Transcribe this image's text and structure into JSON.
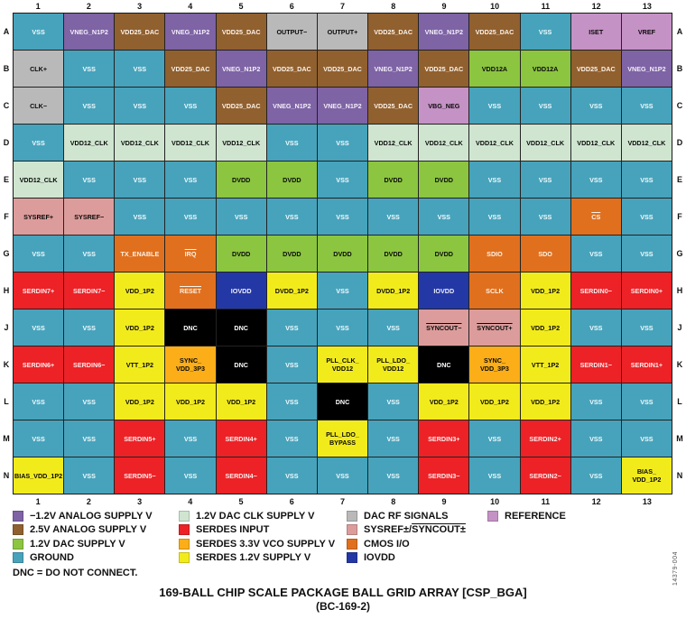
{
  "colors": {
    "gnd": {
      "bg": "#47A3BC",
      "fg": "#F2FBFD"
    },
    "neg": {
      "bg": "#7E63A5",
      "fg": "#F4EFFA"
    },
    "a25": {
      "bg": "#91602F",
      "fg": "#FBF3EA"
    },
    "dac12": {
      "bg": "#8CC540",
      "fg": "#0A0A0A"
    },
    "clk12": {
      "bg": "#CFE5D0",
      "fg": "#0A0A0A"
    },
    "rf": {
      "bg": "#B9B9B9",
      "fg": "#0A0A0A"
    },
    "ref": {
      "bg": "#C592C5",
      "fg": "#0A0A0A"
    },
    "sys": {
      "bg": "#DD9C9C",
      "fg": "#0A0A0A"
    },
    "cmos": {
      "bg": "#E0701E",
      "fg": "#FDF2E8"
    },
    "iovdd": {
      "bg": "#2438A5",
      "fg": "#EDEFFB"
    },
    "serdes": {
      "bg": "#EC2227",
      "fg": "#FDECEC"
    },
    "vco": {
      "bg": "#FBAE17",
      "fg": "#0A0A0A"
    },
    "s12": {
      "bg": "#F2EB1C",
      "fg": "#0A0A0A"
    },
    "dnc": {
      "bg": "#000000",
      "fg": "#FFFFFF"
    }
  },
  "grid": {
    "columns": [
      "1",
      "2",
      "3",
      "4",
      "5",
      "6",
      "7",
      "8",
      "9",
      "10",
      "11",
      "12",
      "13"
    ],
    "rows": [
      {
        "letter": "A",
        "cells": [
          {
            "l": "VSS",
            "t": "gnd"
          },
          {
            "l": "VNEG_N1P2",
            "t": "neg"
          },
          {
            "l": "VDD25_DAC",
            "t": "a25"
          },
          {
            "l": "VNEG_N1P2",
            "t": "neg"
          },
          {
            "l": "VDD25_DAC",
            "t": "a25"
          },
          {
            "l": "OUTPUT−",
            "t": "rf"
          },
          {
            "l": "OUTPUT+",
            "t": "rf"
          },
          {
            "l": "VDD25_DAC",
            "t": "a25"
          },
          {
            "l": "VNEG_N1P2",
            "t": "neg"
          },
          {
            "l": "VDD25_DAC",
            "t": "a25"
          },
          {
            "l": "VSS",
            "t": "gnd"
          },
          {
            "l": "ISET",
            "t": "ref"
          },
          {
            "l": "VREF",
            "t": "ref"
          }
        ]
      },
      {
        "letter": "B",
        "cells": [
          {
            "l": "CLK+",
            "t": "rf"
          },
          {
            "l": "VSS",
            "t": "gnd"
          },
          {
            "l": "VSS",
            "t": "gnd"
          },
          {
            "l": "VDD25_DAC",
            "t": "a25"
          },
          {
            "l": "VNEG_N1P2",
            "t": "neg"
          },
          {
            "l": "VDD25_DAC",
            "t": "a25"
          },
          {
            "l": "VDD25_DAC",
            "t": "a25"
          },
          {
            "l": "VNEG_N1P2",
            "t": "neg"
          },
          {
            "l": "VDD25_DAC",
            "t": "a25"
          },
          {
            "l": "VDD12A",
            "t": "dac12"
          },
          {
            "l": "VDD12A",
            "t": "dac12"
          },
          {
            "l": "VDD25_DAC",
            "t": "a25"
          },
          {
            "l": "VNEG_N1P2",
            "t": "neg"
          }
        ]
      },
      {
        "letter": "C",
        "cells": [
          {
            "l": "CLK−",
            "t": "rf"
          },
          {
            "l": "VSS",
            "t": "gnd"
          },
          {
            "l": "VSS",
            "t": "gnd"
          },
          {
            "l": "VSS",
            "t": "gnd"
          },
          {
            "l": "VDD25_DAC",
            "t": "a25"
          },
          {
            "l": "VNEG_N1P2",
            "t": "neg"
          },
          {
            "l": "VNEG_N1P2",
            "t": "neg"
          },
          {
            "l": "VDD25_DAC",
            "t": "a25"
          },
          {
            "l": "VBG_NEG",
            "t": "ref"
          },
          {
            "l": "VSS",
            "t": "gnd"
          },
          {
            "l": "VSS",
            "t": "gnd"
          },
          {
            "l": "VSS",
            "t": "gnd"
          },
          {
            "l": "VSS",
            "t": "gnd"
          }
        ]
      },
      {
        "letter": "D",
        "cells": [
          {
            "l": "VSS",
            "t": "gnd"
          },
          {
            "l": "VDD12_CLK",
            "t": "clk12"
          },
          {
            "l": "VDD12_CLK",
            "t": "clk12"
          },
          {
            "l": "VDD12_CLK",
            "t": "clk12"
          },
          {
            "l": "VDD12_CLK",
            "t": "clk12"
          },
          {
            "l": "VSS",
            "t": "gnd"
          },
          {
            "l": "VSS",
            "t": "gnd"
          },
          {
            "l": "VDD12_CLK",
            "t": "clk12"
          },
          {
            "l": "VDD12_CLK",
            "t": "clk12"
          },
          {
            "l": "VDD12_CLK",
            "t": "clk12"
          },
          {
            "l": "VDD12_CLK",
            "t": "clk12"
          },
          {
            "l": "VDD12_CLK",
            "t": "clk12"
          },
          {
            "l": "VDD12_CLK",
            "t": "clk12"
          }
        ]
      },
      {
        "letter": "E",
        "cells": [
          {
            "l": "VDD12_CLK",
            "t": "clk12"
          },
          {
            "l": "VSS",
            "t": "gnd"
          },
          {
            "l": "VSS",
            "t": "gnd"
          },
          {
            "l": "VSS",
            "t": "gnd"
          },
          {
            "l": "DVDD",
            "t": "dac12"
          },
          {
            "l": "DVDD",
            "t": "dac12"
          },
          {
            "l": "VSS",
            "t": "gnd"
          },
          {
            "l": "DVDD",
            "t": "dac12"
          },
          {
            "l": "DVDD",
            "t": "dac12"
          },
          {
            "l": "VSS",
            "t": "gnd"
          },
          {
            "l": "VSS",
            "t": "gnd"
          },
          {
            "l": "VSS",
            "t": "gnd"
          },
          {
            "l": "VSS",
            "t": "gnd"
          }
        ]
      },
      {
        "letter": "F",
        "cells": [
          {
            "l": "SYSREF+",
            "t": "sys"
          },
          {
            "l": "SYSREF−",
            "t": "sys"
          },
          {
            "l": "VSS",
            "t": "gnd"
          },
          {
            "l": "VSS",
            "t": "gnd"
          },
          {
            "l": "VSS",
            "t": "gnd"
          },
          {
            "l": "VSS",
            "t": "gnd"
          },
          {
            "l": "VSS",
            "t": "gnd"
          },
          {
            "l": "VSS",
            "t": "gnd"
          },
          {
            "l": "VSS",
            "t": "gnd"
          },
          {
            "l": "VSS",
            "t": "gnd"
          },
          {
            "l": "VSS",
            "t": "gnd"
          },
          {
            "l": "CS",
            "t": "cmos",
            "o": true
          },
          {
            "l": "VSS",
            "t": "gnd"
          }
        ]
      },
      {
        "letter": "G",
        "cells": [
          {
            "l": "VSS",
            "t": "gnd"
          },
          {
            "l": "VSS",
            "t": "gnd"
          },
          {
            "l": "TX_ENABLE",
            "t": "cmos"
          },
          {
            "l": "IRQ",
            "t": "cmos",
            "o": true
          },
          {
            "l": "DVDD",
            "t": "dac12"
          },
          {
            "l": "DVDD",
            "t": "dac12"
          },
          {
            "l": "DVDD",
            "t": "dac12"
          },
          {
            "l": "DVDD",
            "t": "dac12"
          },
          {
            "l": "DVDD",
            "t": "dac12"
          },
          {
            "l": "SDIO",
            "t": "cmos"
          },
          {
            "l": "SDO",
            "t": "cmos"
          },
          {
            "l": "VSS",
            "t": "gnd"
          },
          {
            "l": "VSS",
            "t": "gnd"
          }
        ]
      },
      {
        "letter": "H",
        "cells": [
          {
            "l": "SERDIN7+",
            "t": "serdes"
          },
          {
            "l": "SERDIN7−",
            "t": "serdes"
          },
          {
            "l": "VDD_1P2",
            "t": "s12"
          },
          {
            "l": "RESET",
            "t": "cmos",
            "o": true
          },
          {
            "l": "IOVDD",
            "t": "iovdd"
          },
          {
            "l": "DVDD_1P2",
            "t": "s12"
          },
          {
            "l": "VSS",
            "t": "gnd"
          },
          {
            "l": "DVDD_1P2",
            "t": "s12"
          },
          {
            "l": "IOVDD",
            "t": "iovdd"
          },
          {
            "l": "SCLK",
            "t": "cmos"
          },
          {
            "l": "VDD_1P2",
            "t": "s12"
          },
          {
            "l": "SERDIN0−",
            "t": "serdes"
          },
          {
            "l": "SERDIN0+",
            "t": "serdes"
          }
        ]
      },
      {
        "letter": "J",
        "cells": [
          {
            "l": "VSS",
            "t": "gnd"
          },
          {
            "l": "VSS",
            "t": "gnd"
          },
          {
            "l": "VDD_1P2",
            "t": "s12"
          },
          {
            "l": "DNC",
            "t": "dnc"
          },
          {
            "l": "DNC",
            "t": "dnc"
          },
          {
            "l": "VSS",
            "t": "gnd"
          },
          {
            "l": "VSS",
            "t": "gnd"
          },
          {
            "l": "VSS",
            "t": "gnd"
          },
          {
            "l": "SYNCOUT−",
            "t": "sys",
            "o": true
          },
          {
            "l": "SYNCOUT+",
            "t": "sys",
            "o": true
          },
          {
            "l": "VDD_1P2",
            "t": "s12"
          },
          {
            "l": "VSS",
            "t": "gnd"
          },
          {
            "l": "VSS",
            "t": "gnd"
          }
        ]
      },
      {
        "letter": "K",
        "cells": [
          {
            "l": "SERDIN6+",
            "t": "serdes"
          },
          {
            "l": "SERDIN6−",
            "t": "serdes"
          },
          {
            "l": "VTT_1P2",
            "t": "s12"
          },
          {
            "l": "SYNC_\nVDD_3P3",
            "t": "vco"
          },
          {
            "l": "DNC",
            "t": "dnc"
          },
          {
            "l": "VSS",
            "t": "gnd"
          },
          {
            "l": "PLL_CLK_\nVDD12",
            "t": "s12"
          },
          {
            "l": "PLL_LDO_\nVDD12",
            "t": "s12"
          },
          {
            "l": "DNC",
            "t": "dnc"
          },
          {
            "l": "SYNC_\nVDD_3P3",
            "t": "vco"
          },
          {
            "l": "VTT_1P2",
            "t": "s12"
          },
          {
            "l": "SERDIN1−",
            "t": "serdes"
          },
          {
            "l": "SERDIN1+",
            "t": "serdes"
          }
        ]
      },
      {
        "letter": "L",
        "cells": [
          {
            "l": "VSS",
            "t": "gnd"
          },
          {
            "l": "VSS",
            "t": "gnd"
          },
          {
            "l": "VDD_1P2",
            "t": "s12"
          },
          {
            "l": "VDD_1P2",
            "t": "s12"
          },
          {
            "l": "VDD_1P2",
            "t": "s12"
          },
          {
            "l": "VSS",
            "t": "gnd"
          },
          {
            "l": "DNC",
            "t": "dnc"
          },
          {
            "l": "VSS",
            "t": "gnd"
          },
          {
            "l": "VDD_1P2",
            "t": "s12"
          },
          {
            "l": "VDD_1P2",
            "t": "s12"
          },
          {
            "l": "VDD_1P2",
            "t": "s12"
          },
          {
            "l": "VSS",
            "t": "gnd"
          },
          {
            "l": "VSS",
            "t": "gnd"
          }
        ]
      },
      {
        "letter": "M",
        "cells": [
          {
            "l": "VSS",
            "t": "gnd"
          },
          {
            "l": "VSS",
            "t": "gnd"
          },
          {
            "l": "SERDIN5+",
            "t": "serdes"
          },
          {
            "l": "VSS",
            "t": "gnd"
          },
          {
            "l": "SERDIN4+",
            "t": "serdes"
          },
          {
            "l": "VSS",
            "t": "gnd"
          },
          {
            "l": "PLL_LDO_\nBYPASS",
            "t": "s12"
          },
          {
            "l": "VSS",
            "t": "gnd"
          },
          {
            "l": "SERDIN3+",
            "t": "serdes"
          },
          {
            "l": "VSS",
            "t": "gnd"
          },
          {
            "l": "SERDIN2+",
            "t": "serdes"
          },
          {
            "l": "VSS",
            "t": "gnd"
          },
          {
            "l": "VSS",
            "t": "gnd"
          }
        ]
      },
      {
        "letter": "N",
        "cells": [
          {
            "l": "BIAS_VDD_1P2",
            "t": "s12"
          },
          {
            "l": "VSS",
            "t": "gnd"
          },
          {
            "l": "SERDIN5−",
            "t": "serdes"
          },
          {
            "l": "VSS",
            "t": "gnd"
          },
          {
            "l": "SERDIN4−",
            "t": "serdes"
          },
          {
            "l": "VSS",
            "t": "gnd"
          },
          {
            "l": "VSS",
            "t": "gnd"
          },
          {
            "l": "VSS",
            "t": "gnd"
          },
          {
            "l": "SERDIN3−",
            "t": "serdes"
          },
          {
            "l": "VSS",
            "t": "gnd"
          },
          {
            "l": "SERDIN2−",
            "t": "serdes"
          },
          {
            "l": "VSS",
            "t": "gnd"
          },
          {
            "l": "BIAS_\nVDD_1P2",
            "t": "s12"
          }
        ]
      }
    ]
  },
  "legend": {
    "columns": [
      [
        {
          "t": "neg",
          "label": "−1.2V ANALOG SUPPLY V"
        },
        {
          "t": "a25",
          "label": "2.5V ANALOG SUPPLY V"
        },
        {
          "t": "dac12",
          "label": "1.2V DAC SUPPLY V"
        },
        {
          "t": "gnd",
          "label": "GROUND"
        }
      ],
      [
        {
          "t": "clk12",
          "label": "1.2V DAC CLK SUPPLY V"
        },
        {
          "t": "serdes",
          "label": "SERDES INPUT"
        },
        {
          "t": "vco",
          "label": "SERDES 3.3V VCO SUPPLY V"
        },
        {
          "t": "s12",
          "label": "SERDES 1.2V SUPPLY V"
        }
      ],
      [
        {
          "t": "rf",
          "label": "DAC RF SIGNALS"
        },
        {
          "t": "sys",
          "label": "SYSREF±/",
          "label_overline": "SYNCOUT±"
        },
        {
          "t": "cmos",
          "label": "CMOS I/O"
        },
        {
          "t": "iovdd",
          "label": "IOVDD"
        }
      ],
      [
        {
          "t": "ref",
          "label": "REFERENCE"
        }
      ]
    ]
  },
  "dnc_note": "DNC = DO NOT CONNECT.",
  "title_line1": "169-BALL CHIP SCALE PACKAGE BALL GRID ARRAY [CSP_BGA]",
  "title_line2": "(BC-169-2)",
  "artnum": "14379-004"
}
